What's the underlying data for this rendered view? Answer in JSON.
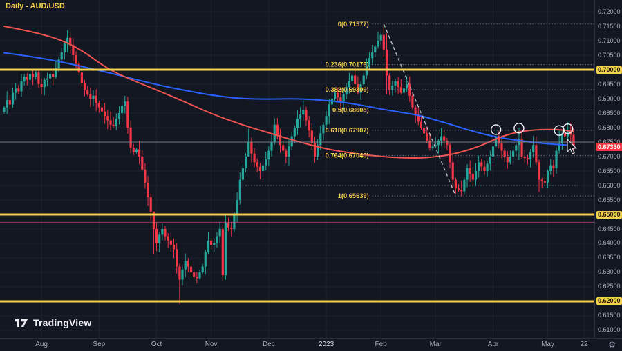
{
  "header": {
    "symbol_label": "Daily - AUD/USD"
  },
  "logo": {
    "text": "TradingView"
  },
  "colors": {
    "background": "#131722",
    "grid": "#1c2230",
    "candle_up": "#26a69a",
    "candle_down": "#f23645",
    "ma_fast": "#2962ff",
    "ma_slow": "#ef5350",
    "key_level_yellow": "#f6d24b",
    "fib_line": "#9097a5",
    "fib_label": "#f3cf4e",
    "last_price_badge": "#f23645",
    "axis_text": "#a8aebb",
    "trendline": "#d6d9e0",
    "circle": "#f3f5f8"
  },
  "price_axis": {
    "labels": [
      "0.72000",
      "0.71500",
      "0.71000",
      "0.70500",
      "0.70000",
      "0.69500",
      "0.69000",
      "0.68500",
      "0.68000",
      "0.67500",
      "0.67000",
      "0.66500",
      "0.66000",
      "0.65500",
      "0.65000",
      "0.64500",
      "0.64000",
      "0.63500",
      "0.63000",
      "0.62500",
      "0.62000",
      "0.61500",
      "0.61000"
    ],
    "highlight_yellow": [
      "0.70000",
      "0.65000",
      "0.62000"
    ],
    "last_price": "0.67330"
  },
  "time_axis": {
    "future_label": {
      "x": 845,
      "label": "22"
    },
    "settings_icon": "⚙"
  },
  "chart_data": {
    "type": "candlestick",
    "title": "Daily - AUD/USD",
    "ylim": [
      0.60738,
      0.72405
    ],
    "price_grid_step": 0.005,
    "month_ticks": [
      {
        "index": 13,
        "label": "Aug"
      },
      {
        "index": 33,
        "label": "Sep"
      },
      {
        "index": 53,
        "label": "Oct"
      },
      {
        "index": 72,
        "label": "Nov"
      },
      {
        "index": 92,
        "label": "Dec"
      },
      {
        "index": 112,
        "label": "2023"
      },
      {
        "index": 131,
        "label": "Feb"
      },
      {
        "index": 150,
        "label": "Mar"
      },
      {
        "index": 170,
        "label": "Apr"
      },
      {
        "index": 189,
        "label": "May"
      }
    ],
    "closes": [
      0.687,
      0.6895,
      0.688,
      0.692,
      0.6935,
      0.6925,
      0.696,
      0.6975,
      0.6965,
      0.6985,
      0.6975,
      0.699,
      0.695,
      0.694,
      0.6965,
      0.697,
      0.6985,
      0.6975,
      0.7005,
      0.7035,
      0.706,
      0.709,
      0.711,
      0.7085,
      0.705,
      0.702,
      0.699,
      0.6955,
      0.693,
      0.6915,
      0.69,
      0.691,
      0.6885,
      0.687,
      0.6855,
      0.684,
      0.6825,
      0.681,
      0.6805,
      0.683,
      0.685,
      0.6875,
      0.689,
      0.68,
      0.673,
      0.6715,
      0.6725,
      0.67,
      0.6655,
      0.661,
      0.656,
      0.651,
      0.645,
      0.64,
      0.643,
      0.645,
      0.6425,
      0.641,
      0.6395,
      0.638,
      0.632,
      0.6275,
      0.631,
      0.634,
      0.632,
      0.63,
      0.6285,
      0.628,
      0.63,
      0.632,
      0.637,
      0.641,
      0.6395,
      0.64,
      0.6425,
      0.645,
      0.629,
      0.647,
      0.6455,
      0.645,
      0.65,
      0.655,
      0.662,
      0.666,
      0.67,
      0.675,
      0.671,
      0.668,
      0.6665,
      0.665,
      0.667,
      0.669,
      0.672,
      0.675,
      0.681,
      0.6775,
      0.674,
      0.672,
      0.67,
      0.6735,
      0.677,
      0.68,
      0.683,
      0.6845,
      0.686,
      0.6825,
      0.679,
      0.6745,
      0.67,
      0.674,
      0.678,
      0.681,
      0.684,
      0.688,
      0.69,
      0.692,
      0.6905,
      0.689,
      0.6915,
      0.694,
      0.696,
      0.698,
      0.695,
      0.692,
      0.695,
      0.698,
      0.701,
      0.704,
      0.706,
      0.708,
      0.71,
      0.712,
      0.707,
      0.698,
      0.693,
      0.6945,
      0.696,
      0.694,
      0.692,
      0.6935,
      0.695,
      0.691,
      0.687,
      0.6845,
      0.682,
      0.68,
      0.678,
      0.6755,
      0.673,
      0.6735,
      0.674,
      0.6755,
      0.677,
      0.6755,
      0.674,
      0.668,
      0.662,
      0.659,
      0.6585,
      0.658,
      0.662,
      0.666,
      0.664,
      0.662,
      0.665,
      0.668,
      0.6665,
      0.665,
      0.6675,
      0.67,
      0.6735,
      0.677,
      0.6745,
      0.672,
      0.67,
      0.668,
      0.67,
      0.672,
      0.674,
      0.676,
      0.67,
      0.6695,
      0.669,
      0.6715,
      0.674,
      0.668,
      0.662,
      0.6615,
      0.661,
      0.665,
      0.667,
      0.666,
      0.672,
      0.6745,
      0.678,
      0.677,
      0.679,
      0.6775,
      0.6733
    ],
    "wick_overrides": {
      "22": [
        0.7136,
        0.706
      ],
      "52": [
        0.648,
        0.6363
      ],
      "61": [
        0.633,
        0.619
      ],
      "76": [
        0.6465,
        0.6272
      ],
      "85": [
        0.6797,
        0.67
      ],
      "104": [
        0.6893,
        0.6825
      ],
      "132": [
        0.71577,
        0.7045
      ],
      "133": [
        0.7125,
        0.6915
      ],
      "159": [
        0.6618,
        0.65639
      ],
      "171": [
        0.6795,
        0.6728
      ],
      "179": [
        0.68,
        0.6688
      ],
      "186": [
        0.669,
        0.6578
      ],
      "193": [
        0.679,
        0.671
      ],
      "196": [
        0.6818,
        0.6752
      ]
    },
    "mas": [
      {
        "name": "MA fast (blue)",
        "color": "#2962ff",
        "width": 2,
        "points": [
          [
            0,
            0.7058
          ],
          [
            13,
            0.7042
          ],
          [
            33,
            0.6998
          ],
          [
            53,
            0.6948
          ],
          [
            63,
            0.6928
          ],
          [
            72,
            0.6912
          ],
          [
            82,
            0.69
          ],
          [
            92,
            0.6898
          ],
          [
            102,
            0.69
          ],
          [
            112,
            0.6894
          ],
          [
            122,
            0.6882
          ],
          [
            131,
            0.6864
          ],
          [
            141,
            0.6848
          ],
          [
            146,
            0.6838
          ],
          [
            150,
            0.6826
          ],
          [
            155,
            0.6812
          ],
          [
            160,
            0.6796
          ],
          [
            165,
            0.6782
          ],
          [
            170,
            0.677
          ],
          [
            175,
            0.6761
          ],
          [
            180,
            0.6754
          ],
          [
            185,
            0.6748
          ],
          [
            190,
            0.6743
          ],
          [
            198,
            0.6738
          ]
        ]
      },
      {
        "name": "MA slow (red)",
        "color": "#ef5350",
        "width": 2,
        "points": [
          [
            0,
            0.715
          ],
          [
            13,
            0.7126
          ],
          [
            25,
            0.7082
          ],
          [
            36,
            0.7002
          ],
          [
            45,
            0.6962
          ],
          [
            53,
            0.693
          ],
          [
            63,
            0.6888
          ],
          [
            72,
            0.6848
          ],
          [
            82,
            0.6812
          ],
          [
            92,
            0.6782
          ],
          [
            102,
            0.6752
          ],
          [
            112,
            0.6726
          ],
          [
            122,
            0.671
          ],
          [
            131,
            0.67
          ],
          [
            141,
            0.6694
          ],
          [
            150,
            0.6698
          ],
          [
            158,
            0.6712
          ],
          [
            166,
            0.6738
          ],
          [
            172,
            0.6766
          ],
          [
            178,
            0.6784
          ],
          [
            184,
            0.6792
          ],
          [
            190,
            0.6794
          ],
          [
            194,
            0.6792
          ],
          [
            198,
            0.6787
          ]
        ]
      }
    ],
    "fib": {
      "start_index": 128,
      "levels": [
        {
          "label": "0(0.71577)",
          "price": 0.71577
        },
        {
          "label": "0.236(0.70176)",
          "price": 0.70176
        },
        {
          "label": "0.382(0.69309)",
          "price": 0.69309
        },
        {
          "label": "0.5(0.68608)",
          "price": 0.68608
        },
        {
          "label": "0.618(0.67907)",
          "price": 0.67907
        },
        {
          "label": "0.764(0.67040)",
          "price": 0.6704
        },
        {
          "label": "1(0.65639)",
          "price": 0.65639
        }
      ]
    },
    "trendline": {
      "from": [
        132,
        0.71577
      ],
      "to": [
        157,
        0.65639
      ]
    },
    "levels": [
      {
        "price": 0.7,
        "color": "#f6d24b",
        "width": 3,
        "opacity": 1
      },
      {
        "price": 0.65,
        "color": "#f6d24b",
        "width": 3,
        "opacity": 1
      },
      {
        "price": 0.62,
        "color": "#f6d24b",
        "width": 3,
        "opacity": 1
      },
      {
        "price": 0.675,
        "color": "#7e8595",
        "width": 1,
        "opacity": 0.9
      },
      {
        "price": 0.6473,
        "color": "#e0588d",
        "width": 1,
        "opacity": 0.6
      }
    ],
    "dotted_level": {
      "price": 0.66,
      "from_index": 84,
      "color": "#c8ccd6",
      "opacity": 0.7
    },
    "circles": [
      {
        "index": 171,
        "price": 0.6793
      },
      {
        "index": 179,
        "price": 0.6798
      },
      {
        "index": 193,
        "price": 0.679
      },
      {
        "index": 196,
        "price": 0.6796
      }
    ],
    "last_price": 0.6733
  }
}
